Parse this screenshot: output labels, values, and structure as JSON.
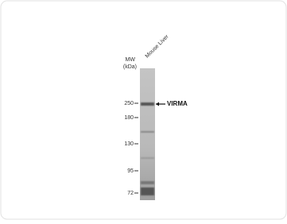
{
  "lane_label": "Mouse Liver",
  "mw_label": "MW",
  "unit_label": "(kDa)",
  "markers": [
    250,
    180,
    130,
    95,
    72
  ],
  "target": "VIRMA"
}
